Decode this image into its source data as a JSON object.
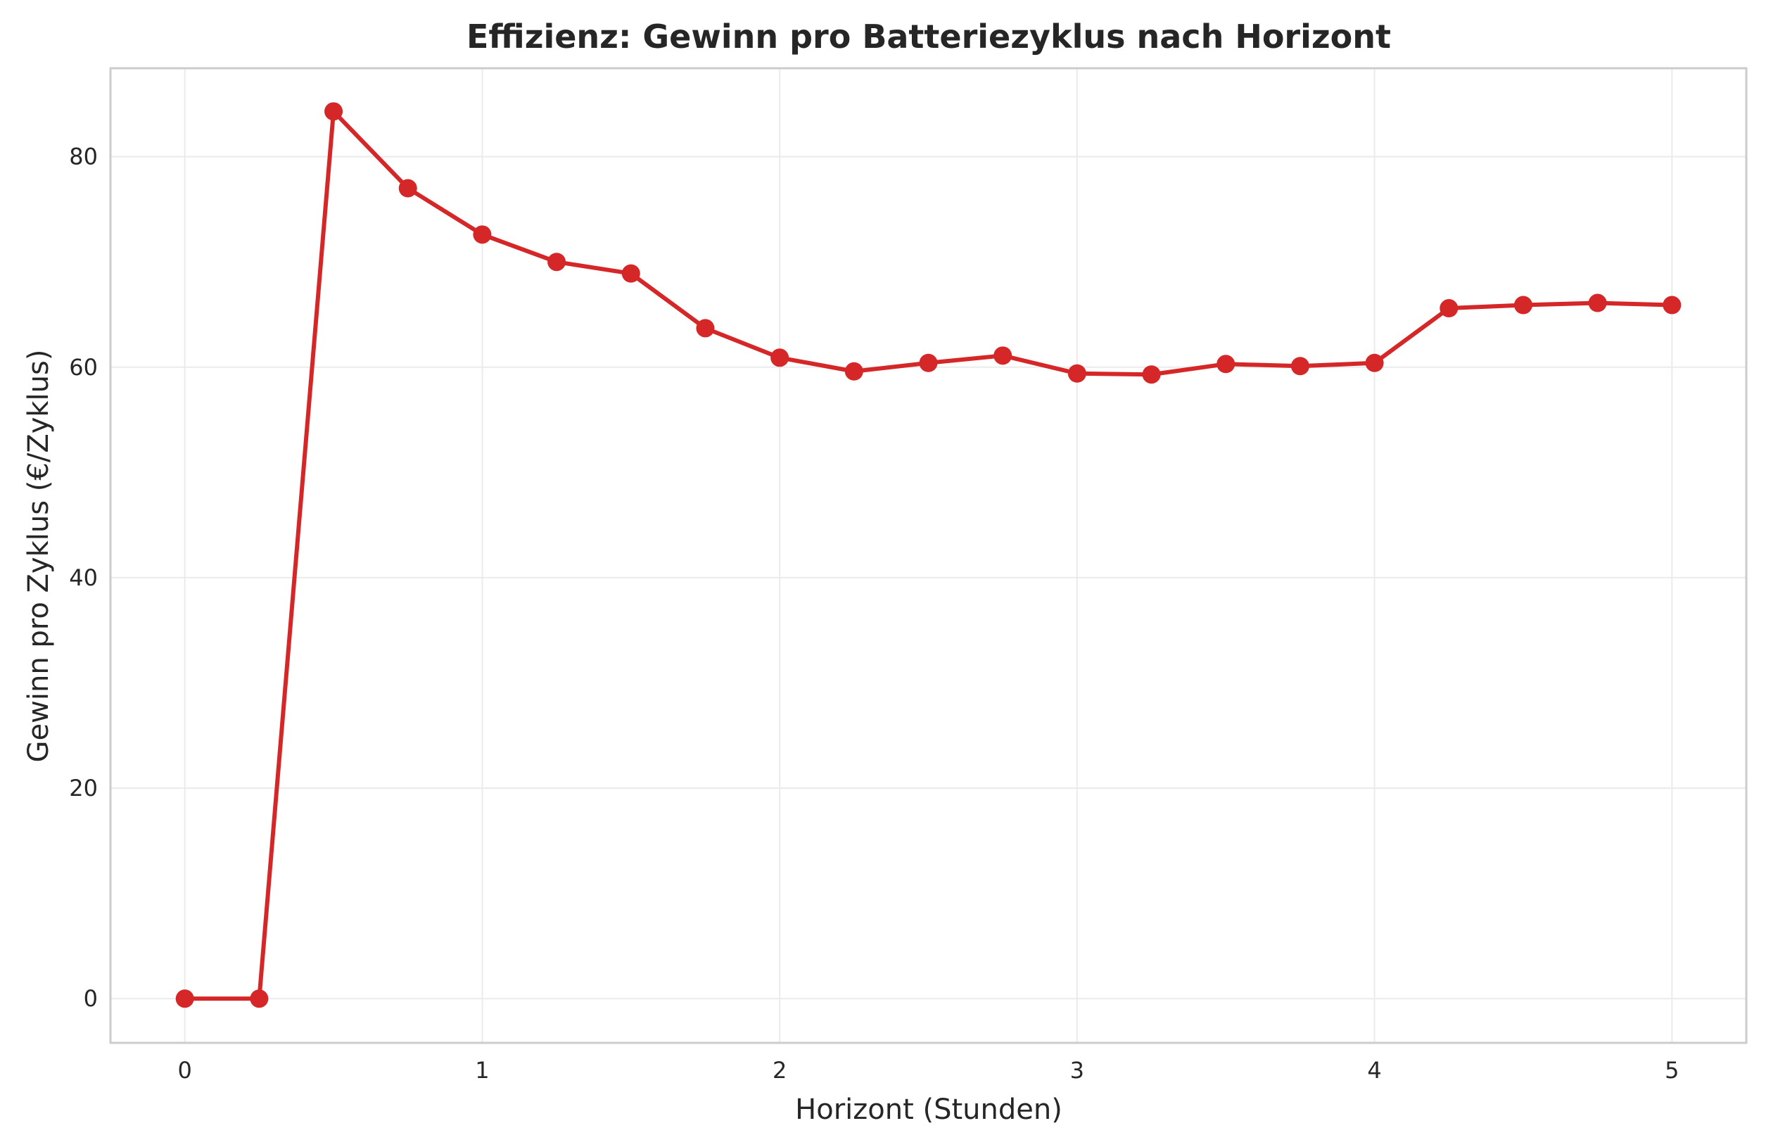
{
  "chart_data": {
    "type": "line",
    "title": "Effizienz: Gewinn pro Batteriezyklus nach Horizont",
    "xlabel": "Horizont (Stunden)",
    "ylabel": "Gewinn pro Zyklus (€/Zyklus)",
    "xlim": [
      -0.25,
      5.25
    ],
    "ylim": [
      -4.2,
      88.4
    ],
    "xticks": [
      0,
      1,
      2,
      3,
      4,
      5
    ],
    "yticks": [
      0,
      20,
      40,
      60,
      80
    ],
    "grid": true,
    "line_color": "#d62728",
    "series": [
      {
        "x": [
          0,
          0.25,
          0.5,
          0.75,
          1.0,
          1.25,
          1.5,
          1.75,
          2.0,
          2.25,
          2.5,
          2.75,
          3.0,
          3.25,
          3.5,
          3.75,
          4.0,
          4.25,
          4.5,
          4.75,
          5.0
        ],
        "y": [
          0,
          0,
          84.3,
          77.0,
          72.6,
          70.0,
          68.9,
          63.7,
          60.9,
          59.6,
          60.4,
          61.1,
          59.4,
          59.3,
          60.3,
          60.1,
          60.4,
          65.6,
          65.9,
          66.1,
          65.9
        ]
      }
    ]
  }
}
